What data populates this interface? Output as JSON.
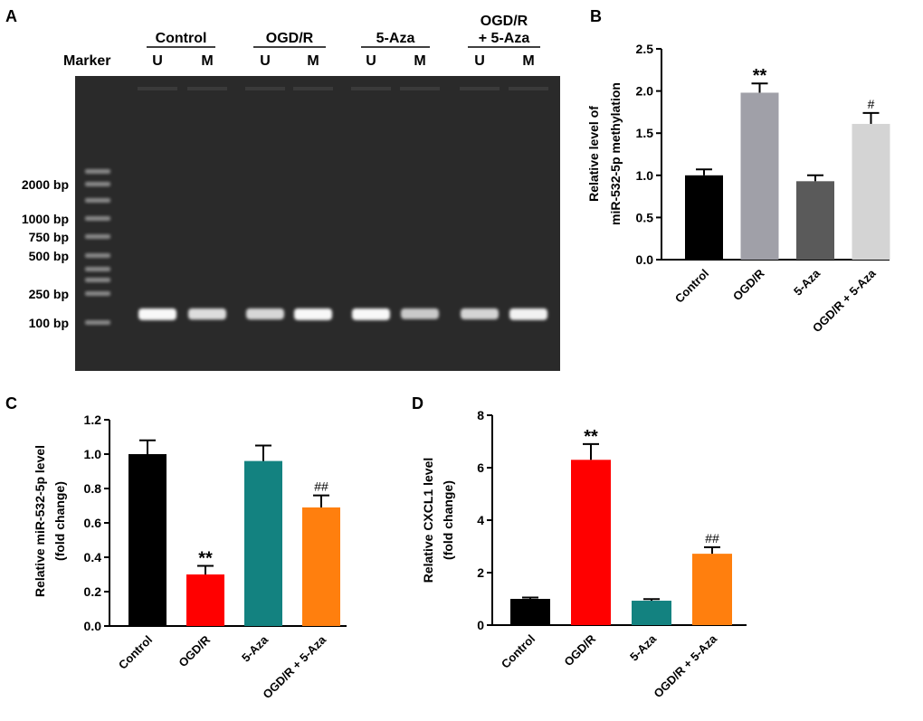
{
  "panels": {
    "A": {
      "letter": "A",
      "marker_label": "Marker",
      "groups": [
        {
          "label_lines": [
            "Control"
          ]
        },
        {
          "label_lines": [
            "OGD/R"
          ]
        },
        {
          "label_lines": [
            "5-Aza"
          ]
        },
        {
          "label_lines": [
            "OGD/R",
            "+ 5-Aza"
          ]
        }
      ],
      "lane_labels": [
        "U",
        "M",
        "U",
        "M",
        "U",
        "M",
        "U",
        "M"
      ],
      "ladder_labels": [
        "2000 bp",
        "1000 bp",
        "750 bp",
        "500 bp",
        "250 bp",
        "100 bp"
      ],
      "band_intensity": [
        0.95,
        0.75,
        0.7,
        0.95,
        0.95,
        0.6,
        0.68,
        0.9
      ]
    }
  },
  "colors": {
    "black": "#000000",
    "grey_dark": "#5a5a5a",
    "grey_mid": "#a0a0a8",
    "grey_light": "#d4d4d4",
    "red": "#ff0000",
    "teal": "#138280",
    "orange": "#ff7f0e",
    "gel_bg": "#2a2a2a",
    "band": "#ffffff"
  },
  "chart_data": [
    {
      "panel": "B",
      "type": "bar",
      "categories": [
        "Control",
        "OGD/R",
        "5-Aza",
        "OGD/R + 5-Aza"
      ],
      "values": [
        1.0,
        1.98,
        0.93,
        1.61
      ],
      "errors": [
        0.07,
        0.11,
        0.07,
        0.13
      ],
      "annotations": [
        "",
        "**",
        "",
        "#"
      ],
      "bar_colors": [
        "#000000",
        "#a0a0a8",
        "#5a5a5a",
        "#d4d4d4"
      ],
      "ylabel_lines": [
        "Relative level of",
        "miR-532-5p methylation"
      ],
      "ylim": [
        0,
        2.5
      ],
      "yticks": [
        "0.0",
        "0.5",
        "1.0",
        "1.5",
        "2.0",
        "2.5"
      ],
      "ytick_values": [
        0,
        0.5,
        1.0,
        1.5,
        2.0,
        2.5
      ]
    },
    {
      "panel": "C",
      "type": "bar",
      "categories": [
        "Control",
        "OGD/R",
        "5-Aza",
        "OGD/R + 5-Aza"
      ],
      "values": [
        1.0,
        0.3,
        0.96,
        0.69
      ],
      "errors": [
        0.08,
        0.05,
        0.09,
        0.07
      ],
      "annotations": [
        "",
        "**",
        "",
        "##"
      ],
      "bar_colors": [
        "#000000",
        "#ff0000",
        "#138280",
        "#ff7f0e"
      ],
      "ylabel_lines": [
        "Relative miR-532-5p level",
        "(fold change)"
      ],
      "ylim": [
        0,
        1.2
      ],
      "yticks": [
        "0.0",
        "0.2",
        "0.4",
        "0.6",
        "0.8",
        "1.0",
        "1.2"
      ],
      "ytick_values": [
        0,
        0.2,
        0.4,
        0.6,
        0.8,
        1.0,
        1.2
      ]
    },
    {
      "panel": "D",
      "type": "bar",
      "categories": [
        "Control",
        "OGD/R",
        "5-Aza",
        "OGD/R + 5-Aza"
      ],
      "values": [
        1.0,
        6.3,
        0.93,
        2.72
      ],
      "errors": [
        0.05,
        0.6,
        0.06,
        0.25
      ],
      "annotations": [
        "",
        "**",
        "",
        "##"
      ],
      "bar_colors": [
        "#000000",
        "#ff0000",
        "#138280",
        "#ff7f0e"
      ],
      "ylabel_lines": [
        "Relative CXCL1 level",
        "(fold change)"
      ],
      "ylim": [
        0,
        8
      ],
      "yticks": [
        "0",
        "2",
        "4",
        "6",
        "8"
      ],
      "ytick_values": [
        0,
        2,
        4,
        6,
        8
      ]
    }
  ]
}
